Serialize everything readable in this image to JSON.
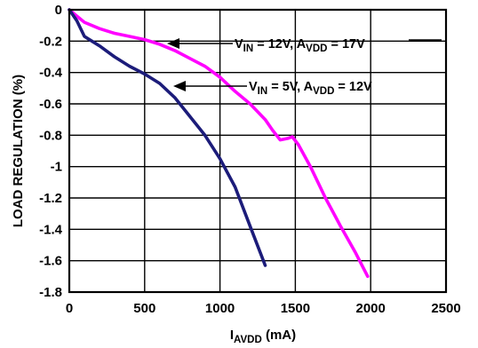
{
  "chart_data": {
    "type": "line",
    "title": "",
    "xlabel": {
      "main": "I",
      "sub": "AVDD",
      "rest": " (mA)"
    },
    "ylabel": "LOAD REGULATION (%)",
    "xlim": [
      0,
      2500
    ],
    "ylim": [
      -1.8,
      0
    ],
    "x_ticks": [
      0,
      500,
      1000,
      1500,
      2000,
      2500
    ],
    "x_tick_labels": [
      "0",
      "500",
      "1000",
      "1500",
      "2000",
      "2500"
    ],
    "y_ticks": [
      0,
      -0.2,
      -0.4,
      -0.6,
      -0.8,
      -1,
      -1.2,
      -1.4,
      -1.6,
      -1.8
    ],
    "y_tick_labels": [
      "0",
      "-0.2",
      "-0.4",
      "-0.6",
      "-0.8",
      "-1",
      "-1.2",
      "-1.4",
      "-1.6",
      "-1.8"
    ],
    "grid": true,
    "series": [
      {
        "color": "#ff00ff",
        "label": {
          "vin_main": "V",
          "vin_sub": "IN",
          "vin_val": " = 12V, ",
          "a_main": "A",
          "a_sub": "VDD",
          "a_val": " = 17V"
        },
        "x": [
          0,
          50,
          100,
          200,
          300,
          400,
          500,
          600,
          700,
          800,
          900,
          1000,
          1100,
          1200,
          1300,
          1350,
          1400,
          1450,
          1480,
          1520,
          1600,
          1700,
          1800,
          1900,
          1980
        ],
        "y": [
          0,
          -0.04,
          -0.08,
          -0.12,
          -0.15,
          -0.17,
          -0.19,
          -0.22,
          -0.26,
          -0.31,
          -0.36,
          -0.43,
          -0.52,
          -0.6,
          -0.7,
          -0.77,
          -0.83,
          -0.82,
          -0.81,
          -0.86,
          -1.0,
          -1.2,
          -1.38,
          -1.55,
          -1.7
        ]
      },
      {
        "color": "#1c1c7a",
        "label": {
          "vin_main": "V",
          "vin_sub": "IN",
          "vin_val": " = 5V, ",
          "a_main": "A",
          "a_sub": "VDD",
          "a_val": " = 12V"
        },
        "x": [
          0,
          50,
          100,
          150,
          200,
          300,
          400,
          500,
          600,
          700,
          800,
          900,
          1000,
          1100,
          1200,
          1300
        ],
        "y": [
          0,
          -0.07,
          -0.17,
          -0.2,
          -0.23,
          -0.3,
          -0.36,
          -0.41,
          -0.47,
          -0.56,
          -0.68,
          -0.8,
          -0.95,
          -1.13,
          -1.38,
          -1.63
        ]
      }
    ]
  }
}
